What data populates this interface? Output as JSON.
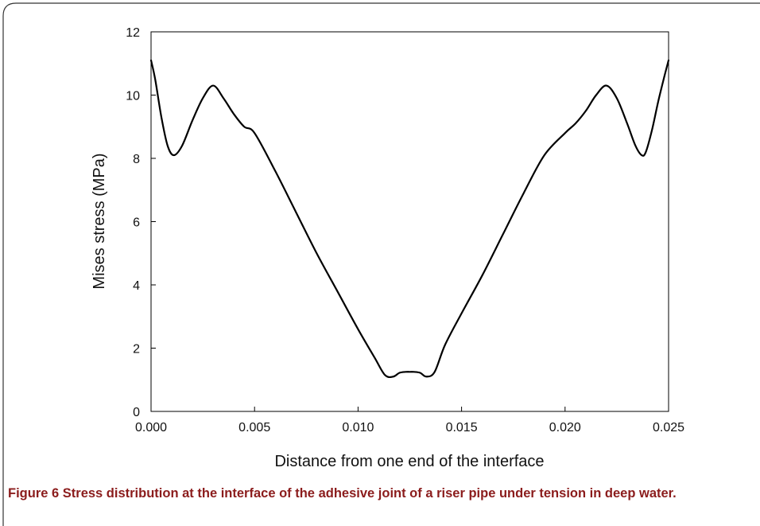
{
  "chart_data": {
    "type": "line",
    "title": "",
    "xlabel": "Distance from one end of the interface",
    "ylabel": "Mises stress (MPa)",
    "xlim": [
      0,
      0.025
    ],
    "ylim": [
      0,
      12
    ],
    "x_ticks": [
      "0.000",
      "0.005",
      "0.010",
      "0.015",
      "0.020",
      "0.025"
    ],
    "y_ticks": [
      "0",
      "2",
      "4",
      "6",
      "8",
      "10",
      "12"
    ],
    "grid": false,
    "legend": "none",
    "line_color": "#000000",
    "series": [
      {
        "x": [
          0.0,
          0.0002,
          0.0005,
          0.0008,
          0.0011,
          0.0015,
          0.002,
          0.0025,
          0.003,
          0.0035,
          0.004,
          0.0045,
          0.005,
          0.006,
          0.007,
          0.008,
          0.009,
          0.01,
          0.0108,
          0.0113,
          0.0117,
          0.012,
          0.0123,
          0.0125,
          0.0127,
          0.013,
          0.0133,
          0.0137,
          0.0142,
          0.015,
          0.016,
          0.017,
          0.018,
          0.019,
          0.02,
          0.0205,
          0.021,
          0.0215,
          0.022,
          0.0225,
          0.023,
          0.0234,
          0.0237,
          0.0239,
          0.0242,
          0.0245,
          0.0248,
          0.025
        ],
        "y": [
          11.1,
          10.5,
          9.3,
          8.4,
          8.1,
          8.4,
          9.2,
          9.9,
          10.3,
          9.9,
          9.4,
          9.0,
          8.8,
          7.6,
          6.3,
          5.0,
          3.8,
          2.6,
          1.7,
          1.15,
          1.1,
          1.22,
          1.25,
          1.25,
          1.25,
          1.22,
          1.1,
          1.25,
          2.1,
          3.1,
          4.3,
          5.6,
          6.9,
          8.1,
          8.8,
          9.1,
          9.5,
          10.0,
          10.3,
          9.9,
          9.1,
          8.4,
          8.1,
          8.2,
          8.9,
          9.8,
          10.6,
          11.1
        ]
      }
    ]
  },
  "caption": {
    "label": "Figure 6",
    "text": " Stress distribution at the interface of the adhesive joint of a riser pipe under tension in deep water."
  }
}
